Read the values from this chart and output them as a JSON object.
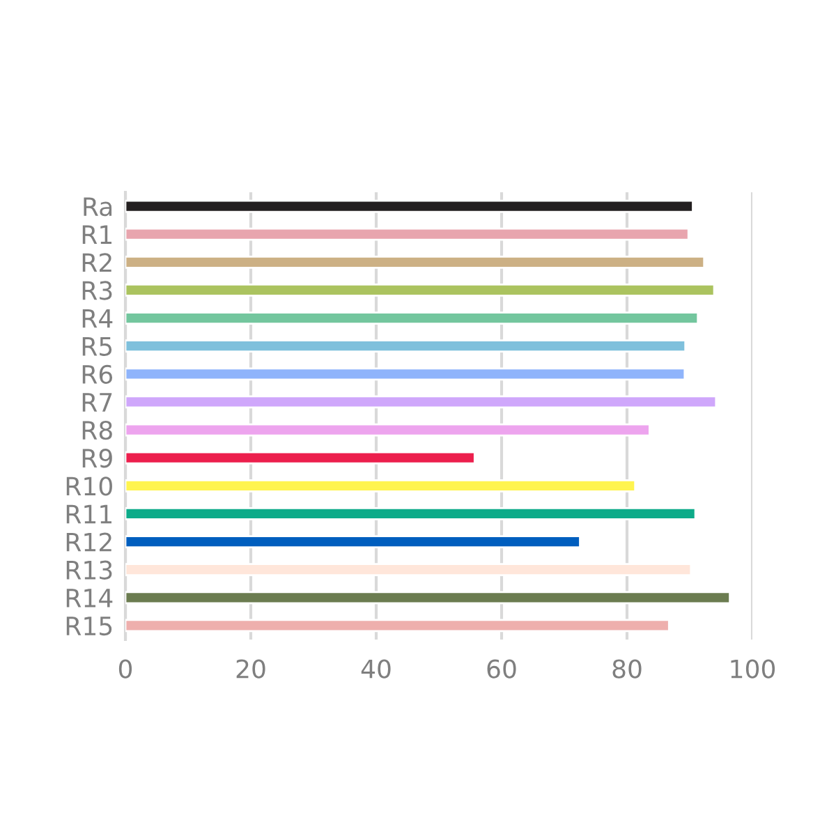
{
  "chart_data": {
    "type": "bar",
    "orientation": "horizontal",
    "categories": [
      "Ra",
      "R1",
      "R2",
      "R3",
      "R4",
      "R5",
      "R6",
      "R7",
      "R8",
      "R9",
      "R10",
      "R11",
      "R12",
      "R13",
      "R14",
      "R15"
    ],
    "values": [
      90.5,
      89.8,
      92.3,
      93.9,
      91.3,
      89.3,
      89.2,
      94.2,
      83.6,
      55.7,
      81.3,
      90.9,
      72.5,
      90.2,
      96.4,
      86.7
    ],
    "colors": [
      "#231f20",
      "#e8a5ae",
      "#ccb084",
      "#abc35f",
      "#73c69e",
      "#7fc0dc",
      "#8fb4fb",
      "#cfa7fb",
      "#eda4ee",
      "#ec1f4d",
      "#fff44f",
      "#0dab89",
      "#005ebe",
      "#ffe6da",
      "#6b7c50",
      "#eeafad"
    ],
    "xlim": [
      0,
      100
    ],
    "xticks": [
      0,
      20,
      40,
      60,
      80,
      100
    ],
    "grid": "x"
  }
}
